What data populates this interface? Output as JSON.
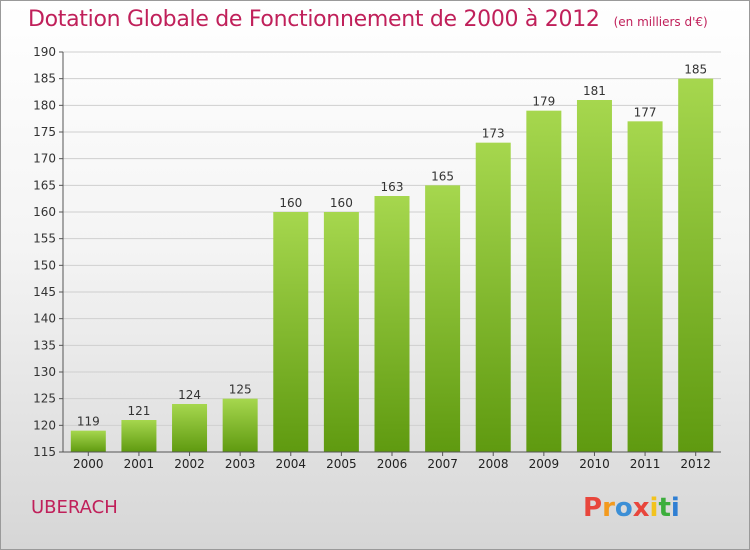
{
  "header": {
    "title": "Dotation Globale de Fonctionnement de 2000 à 2012",
    "subtitle": "(en milliers d'€)"
  },
  "footer": {
    "commune": "UBERACH",
    "logo_text": "Proxiti"
  },
  "colors": {
    "title": "#c0205a",
    "bar_top": "#a6d74e",
    "bar_bottom": "#5f9a10",
    "logo": [
      "#e8463c",
      "#f39a1e",
      "#3c8fd6",
      "#e8463c",
      "#f2c31d",
      "#3cae3c",
      "#2f7fd3"
    ]
  },
  "chart_data": {
    "type": "bar",
    "categories": [
      "2000",
      "2001",
      "2002",
      "2003",
      "2004",
      "2005",
      "2006",
      "2007",
      "2008",
      "2009",
      "2010",
      "2011",
      "2012"
    ],
    "values": [
      119,
      121,
      124,
      125,
      160,
      160,
      163,
      165,
      173,
      179,
      181,
      177,
      185
    ],
    "ylim": [
      115,
      190
    ],
    "yticks": [
      115,
      120,
      125,
      130,
      135,
      140,
      145,
      150,
      155,
      160,
      165,
      170,
      175,
      180,
      185,
      190
    ],
    "grid": true
  }
}
